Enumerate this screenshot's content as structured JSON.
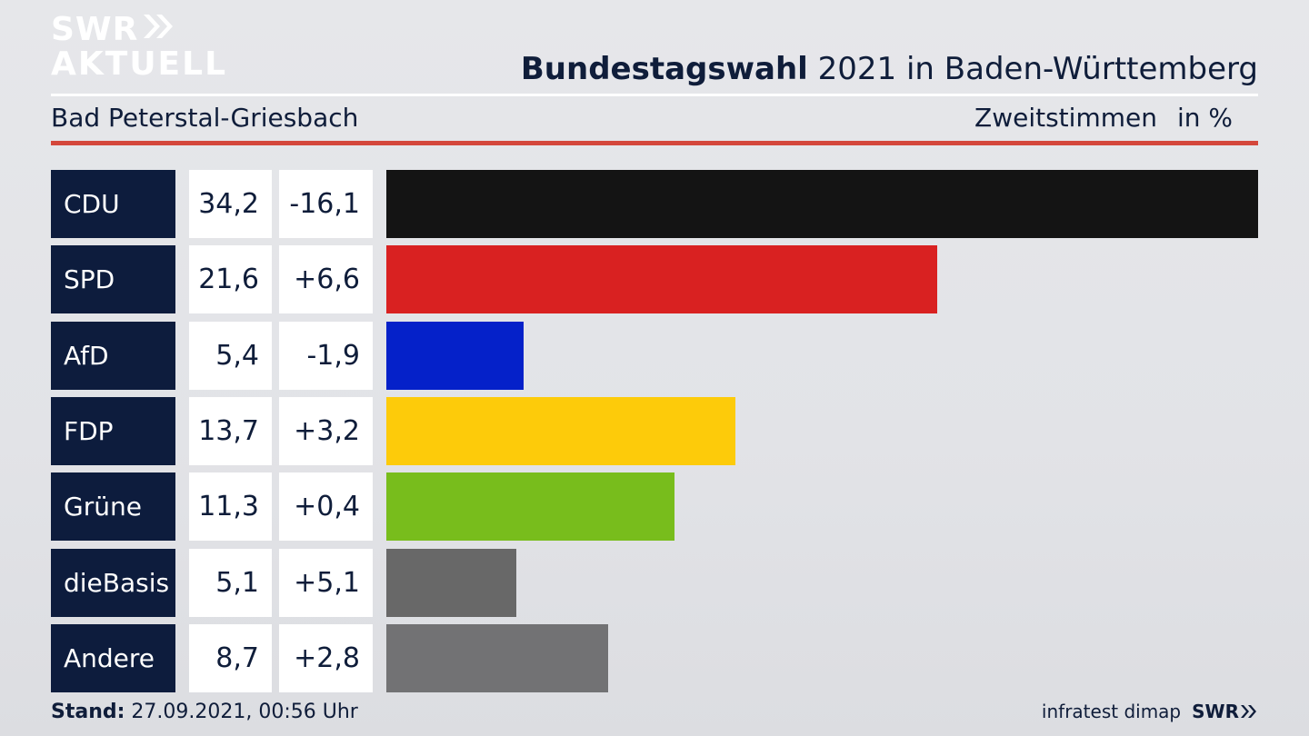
{
  "logo": {
    "line1": "SWR",
    "line2": "AKTUELL"
  },
  "header": {
    "title_bold": "Bundestagswahl",
    "title_rest": " 2021 in Baden-Württemberg",
    "region": "Bad Peterstal-Griesbach",
    "metric": "Zweitstimmen",
    "unit": "in %"
  },
  "footer": {
    "stand_label": "Stand:",
    "stand_value": " 27.09.2021, 00:56 Uhr",
    "source": "infratest dimap",
    "brand": "SWR"
  },
  "chart_data": {
    "type": "bar",
    "orientation": "horizontal",
    "title": "Bundestagswahl 2021 in Baden-Württemberg",
    "subtitle": "Bad Peterstal-Griesbach",
    "categories": [
      "CDU",
      "SPD",
      "AfD",
      "FDP",
      "Grüne",
      "dieBasis",
      "Andere"
    ],
    "values": [
      34.2,
      21.6,
      5.4,
      13.7,
      11.3,
      5.1,
      8.7
    ],
    "value_labels": [
      "34,2",
      "21,6",
      "5,4",
      "13,7",
      "11,3",
      "5,1",
      "8,7"
    ],
    "diffs": [
      -16.1,
      6.6,
      -1.9,
      3.2,
      0.4,
      5.1,
      2.8
    ],
    "diff_labels": [
      "-16,1",
      "+6,6",
      "-1,9",
      "+3,2",
      "+0,4",
      "+5,1",
      "+2,8"
    ],
    "colors": [
      "#141414",
      "#d92121",
      "#0521c9",
      "#fdcb0a",
      "#78bd1c",
      "#686868",
      "#727274"
    ],
    "xlim": [
      0,
      34.2
    ],
    "grid": false,
    "legend": "none"
  }
}
